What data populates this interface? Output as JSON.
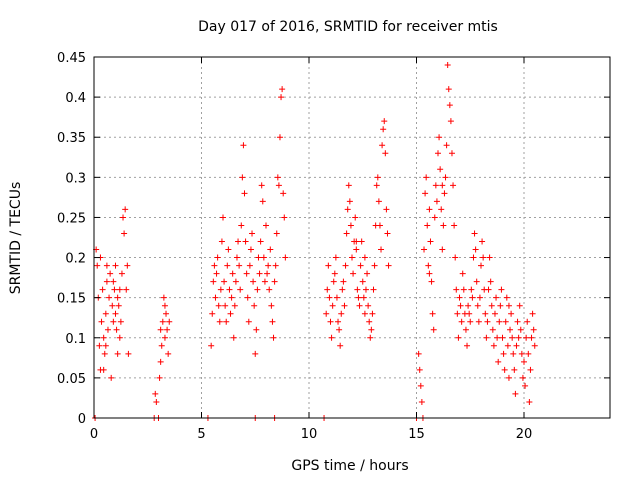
{
  "chart_data": {
    "type": "scatter",
    "title": "Day 017 of 2016, SRMTID for receiver mtis",
    "xlabel": "GPS time / hours",
    "ylabel": "SRMTID / TECUs",
    "xlim": [
      0,
      24
    ],
    "ylim": [
      0,
      0.45
    ],
    "grid": true,
    "marker": "+",
    "color": "#ff0000",
    "x_ticks": [
      {
        "value": 0,
        "label": "0"
      },
      {
        "value": 5,
        "label": "5"
      },
      {
        "value": 10,
        "label": "10"
      },
      {
        "value": 15,
        "label": "15"
      },
      {
        "value": 20,
        "label": "20"
      }
    ],
    "y_ticks": [
      {
        "value": 0,
        "label": "0"
      },
      {
        "value": 0.05,
        "label": "0.05"
      },
      {
        "value": 0.1,
        "label": "0.1"
      },
      {
        "value": 0.15,
        "label": "0.15"
      },
      {
        "value": 0.2,
        "label": "0.2"
      },
      {
        "value": 0.25,
        "label": "0.25"
      },
      {
        "value": 0.3,
        "label": "0.3"
      },
      {
        "value": 0.35,
        "label": "0.35"
      },
      {
        "value": 0.4,
        "label": "0.4"
      },
      {
        "value": 0.45,
        "label": "0.45"
      }
    ],
    "series": [
      {
        "name": "SRMTID",
        "points": [
          [
            0.05,
            0.0
          ],
          [
            0.1,
            0.21
          ],
          [
            0.15,
            0.19
          ],
          [
            0.2,
            0.15
          ],
          [
            0.25,
            0.09
          ],
          [
            0.3,
            0.06
          ],
          [
            0.35,
            0.12
          ],
          [
            0.4,
            0.16
          ],
          [
            0.45,
            0.1
          ],
          [
            0.5,
            0.08
          ],
          [
            0.55,
            0.13
          ],
          [
            0.6,
            0.17
          ],
          [
            0.65,
            0.11
          ],
          [
            0.7,
            0.15
          ],
          [
            0.75,
            0.18
          ],
          [
            0.8,
            0.05
          ],
          [
            0.85,
            0.14
          ],
          [
            0.9,
            0.12
          ],
          [
            0.95,
            0.16
          ],
          [
            1.0,
            0.13
          ],
          [
            1.05,
            0.11
          ],
          [
            1.1,
            0.15
          ],
          [
            1.15,
            0.14
          ],
          [
            1.2,
            0.1
          ],
          [
            1.25,
            0.12
          ],
          [
            1.3,
            0.18
          ],
          [
            1.35,
            0.25
          ],
          [
            1.4,
            0.23
          ],
          [
            1.45,
            0.26
          ],
          [
            1.5,
            0.16
          ],
          [
            1.55,
            0.19
          ],
          [
            1.6,
            0.08
          ],
          [
            0.3,
            0.2
          ],
          [
            0.6,
            0.19
          ],
          [
            0.9,
            0.17
          ],
          [
            1.0,
            0.19
          ],
          [
            1.2,
            0.16
          ],
          [
            0.45,
            0.06
          ],
          [
            0.55,
            0.09
          ],
          [
            1.1,
            0.08
          ],
          [
            2.8,
            0.0
          ],
          [
            2.85,
            0.03
          ],
          [
            2.9,
            0.02
          ],
          [
            3.0,
            0.0
          ],
          [
            3.05,
            0.05
          ],
          [
            3.1,
            0.07
          ],
          [
            3.15,
            0.09
          ],
          [
            3.2,
            0.12
          ],
          [
            3.25,
            0.15
          ],
          [
            3.3,
            0.1
          ],
          [
            3.35,
            0.13
          ],
          [
            3.4,
            0.11
          ],
          [
            3.45,
            0.08
          ],
          [
            3.5,
            0.12
          ],
          [
            3.1,
            0.11
          ],
          [
            3.3,
            0.14
          ],
          [
            5.3,
            0.0
          ],
          [
            5.45,
            0.09
          ],
          [
            5.5,
            0.13
          ],
          [
            5.55,
            0.17
          ],
          [
            5.6,
            0.19
          ],
          [
            5.65,
            0.15
          ],
          [
            5.7,
            0.18
          ],
          [
            5.75,
            0.2
          ],
          [
            5.8,
            0.14
          ],
          [
            5.85,
            0.12
          ],
          [
            5.9,
            0.16
          ],
          [
            5.95,
            0.22
          ],
          [
            6.0,
            0.25
          ],
          [
            6.05,
            0.17
          ],
          [
            6.1,
            0.14
          ],
          [
            6.15,
            0.12
          ],
          [
            6.2,
            0.19
          ],
          [
            6.25,
            0.21
          ],
          [
            6.3,
            0.16
          ],
          [
            6.35,
            0.13
          ],
          [
            6.4,
            0.15
          ],
          [
            6.45,
            0.18
          ],
          [
            6.5,
            0.1
          ],
          [
            6.55,
            0.14
          ],
          [
            6.6,
            0.17
          ],
          [
            6.65,
            0.2
          ],
          [
            6.7,
            0.22
          ],
          [
            6.75,
            0.19
          ],
          [
            6.8,
            0.16
          ],
          [
            6.85,
            0.24
          ],
          [
            6.9,
            0.3
          ],
          [
            6.95,
            0.34
          ],
          [
            7.0,
            0.28
          ],
          [
            7.05,
            0.22
          ],
          [
            7.1,
            0.18
          ],
          [
            7.15,
            0.15
          ],
          [
            7.2,
            0.12
          ],
          [
            7.25,
            0.19
          ],
          [
            7.3,
            0.21
          ],
          [
            7.35,
            0.23
          ],
          [
            7.4,
            0.17
          ],
          [
            7.45,
            0.14
          ],
          [
            7.5,
            0.08
          ],
          [
            7.55,
            0.11
          ],
          [
            7.6,
            0.16
          ],
          [
            7.65,
            0.2
          ],
          [
            7.7,
            0.18
          ],
          [
            7.75,
            0.22
          ],
          [
            7.8,
            0.29
          ],
          [
            7.85,
            0.27
          ],
          [
            7.9,
            0.2
          ],
          [
            7.95,
            0.17
          ],
          [
            8.0,
            0.24
          ],
          [
            8.05,
            0.18
          ],
          [
            8.1,
            0.19
          ],
          [
            8.15,
            0.16
          ],
          [
            8.2,
            0.21
          ],
          [
            8.25,
            0.14
          ],
          [
            8.3,
            0.12
          ],
          [
            8.35,
            0.1
          ],
          [
            8.4,
            0.17
          ],
          [
            8.45,
            0.19
          ],
          [
            8.5,
            0.23
          ],
          [
            8.55,
            0.3
          ],
          [
            8.6,
            0.29
          ],
          [
            8.65,
            0.35
          ],
          [
            8.7,
            0.4
          ],
          [
            8.75,
            0.41
          ],
          [
            8.8,
            0.28
          ],
          [
            8.85,
            0.25
          ],
          [
            8.9,
            0.2
          ],
          [
            7.5,
            0.0
          ],
          [
            8.4,
            0.0
          ],
          [
            10.7,
            0.0
          ],
          [
            10.8,
            0.13
          ],
          [
            10.85,
            0.16
          ],
          [
            10.9,
            0.19
          ],
          [
            10.95,
            0.15
          ],
          [
            11.0,
            0.12
          ],
          [
            11.05,
            0.1
          ],
          [
            11.1,
            0.14
          ],
          [
            11.15,
            0.17
          ],
          [
            11.2,
            0.18
          ],
          [
            11.25,
            0.2
          ],
          [
            11.3,
            0.15
          ],
          [
            11.35,
            0.12
          ],
          [
            11.4,
            0.11
          ],
          [
            11.45,
            0.09
          ],
          [
            11.5,
            0.13
          ],
          [
            11.55,
            0.16
          ],
          [
            11.6,
            0.17
          ],
          [
            11.65,
            0.14
          ],
          [
            11.7,
            0.19
          ],
          [
            11.75,
            0.23
          ],
          [
            11.8,
            0.26
          ],
          [
            11.85,
            0.29
          ],
          [
            11.9,
            0.27
          ],
          [
            11.95,
            0.24
          ],
          [
            12.0,
            0.2
          ],
          [
            12.05,
            0.18
          ],
          [
            12.1,
            0.22
          ],
          [
            12.15,
            0.25
          ],
          [
            12.2,
            0.21
          ],
          [
            12.25,
            0.16
          ],
          [
            12.3,
            0.15
          ],
          [
            12.35,
            0.14
          ],
          [
            12.4,
            0.19
          ],
          [
            12.45,
            0.22
          ],
          [
            12.5,
            0.17
          ],
          [
            12.55,
            0.15
          ],
          [
            12.6,
            0.13
          ],
          [
            12.65,
            0.16
          ],
          [
            12.7,
            0.18
          ],
          [
            12.75,
            0.14
          ],
          [
            12.8,
            0.12
          ],
          [
            12.85,
            0.1
          ],
          [
            12.9,
            0.11
          ],
          [
            12.95,
            0.13
          ],
          [
            13.0,
            0.16
          ],
          [
            13.05,
            0.19
          ],
          [
            13.1,
            0.24
          ],
          [
            13.15,
            0.29
          ],
          [
            13.2,
            0.3
          ],
          [
            13.25,
            0.27
          ],
          [
            13.3,
            0.24
          ],
          [
            13.35,
            0.21
          ],
          [
            13.4,
            0.34
          ],
          [
            13.45,
            0.36
          ],
          [
            13.5,
            0.37
          ],
          [
            13.55,
            0.33
          ],
          [
            13.6,
            0.26
          ],
          [
            13.65,
            0.23
          ],
          [
            13.7,
            0.19
          ],
          [
            12.2,
            0.22
          ],
          [
            12.6,
            0.2
          ],
          [
            15.0,
            0.0
          ],
          [
            15.1,
            0.08
          ],
          [
            15.15,
            0.06
          ],
          [
            15.2,
            0.04
          ],
          [
            15.25,
            0.02
          ],
          [
            15.3,
            0.0
          ],
          [
            15.35,
            0.21
          ],
          [
            15.4,
            0.28
          ],
          [
            15.45,
            0.3
          ],
          [
            15.5,
            0.24
          ],
          [
            15.55,
            0.19
          ],
          [
            15.6,
            0.26
          ],
          [
            15.65,
            0.22
          ],
          [
            15.7,
            0.17
          ],
          [
            15.75,
            0.13
          ],
          [
            15.8,
            0.11
          ],
          [
            15.85,
            0.25
          ],
          [
            15.9,
            0.29
          ],
          [
            15.95,
            0.27
          ],
          [
            16.0,
            0.33
          ],
          [
            16.05,
            0.35
          ],
          [
            16.1,
            0.31
          ],
          [
            16.15,
            0.26
          ],
          [
            16.2,
            0.21
          ],
          [
            16.25,
            0.24
          ],
          [
            16.3,
            0.28
          ],
          [
            16.35,
            0.3
          ],
          [
            16.4,
            0.34
          ],
          [
            16.45,
            0.44
          ],
          [
            16.5,
            0.41
          ],
          [
            16.55,
            0.39
          ],
          [
            16.6,
            0.37
          ],
          [
            16.65,
            0.33
          ],
          [
            16.7,
            0.29
          ],
          [
            16.75,
            0.24
          ],
          [
            16.8,
            0.2
          ],
          [
            16.85,
            0.16
          ],
          [
            16.9,
            0.13
          ],
          [
            16.95,
            0.1
          ],
          [
            17.0,
            0.15
          ],
          [
            17.05,
            0.14
          ],
          [
            17.1,
            0.12
          ],
          [
            17.15,
            0.18
          ],
          [
            17.2,
            0.16
          ],
          [
            17.25,
            0.13
          ],
          [
            17.3,
            0.11
          ],
          [
            17.35,
            0.09
          ],
          [
            17.4,
            0.14
          ],
          [
            17.45,
            0.13
          ],
          [
            17.5,
            0.12
          ],
          [
            17.55,
            0.16
          ],
          [
            17.6,
            0.15
          ],
          [
            17.65,
            0.2
          ],
          [
            17.7,
            0.23
          ],
          [
            17.75,
            0.21
          ],
          [
            17.8,
            0.17
          ],
          [
            17.85,
            0.14
          ],
          [
            17.9,
            0.12
          ],
          [
            17.95,
            0.15
          ],
          [
            18.0,
            0.19
          ],
          [
            18.05,
            0.22
          ],
          [
            18.1,
            0.2
          ],
          [
            18.15,
            0.16
          ],
          [
            18.2,
            0.13
          ],
          [
            18.25,
            0.1
          ],
          [
            18.3,
            0.12
          ],
          [
            18.35,
            0.16
          ],
          [
            18.4,
            0.2
          ],
          [
            18.45,
            0.17
          ],
          [
            18.5,
            0.14
          ],
          [
            18.55,
            0.11
          ],
          [
            18.6,
            0.09
          ],
          [
            18.65,
            0.13
          ],
          [
            18.7,
            0.15
          ],
          [
            18.75,
            0.1
          ],
          [
            18.8,
            0.07
          ],
          [
            18.85,
            0.12
          ],
          [
            18.9,
            0.14
          ],
          [
            18.95,
            0.16
          ],
          [
            19.0,
            0.1
          ],
          [
            19.05,
            0.08
          ],
          [
            19.1,
            0.06
          ],
          [
            19.15,
            0.12
          ],
          [
            19.2,
            0.15
          ],
          [
            19.25,
            0.09
          ],
          [
            19.3,
            0.05
          ],
          [
            19.35,
            0.11
          ],
          [
            19.4,
            0.13
          ],
          [
            19.45,
            0.1
          ],
          [
            19.5,
            0.08
          ],
          [
            19.55,
            0.06
          ],
          [
            19.6,
            0.03
          ],
          [
            19.65,
            0.09
          ],
          [
            19.7,
            0.12
          ],
          [
            19.75,
            0.1
          ],
          [
            19.8,
            0.14
          ],
          [
            19.85,
            0.11
          ],
          [
            19.9,
            0.08
          ],
          [
            19.95,
            0.05
          ],
          [
            20.0,
            0.07
          ],
          [
            20.05,
            0.04
          ],
          [
            20.1,
            0.1
          ],
          [
            20.15,
            0.12
          ],
          [
            20.2,
            0.08
          ],
          [
            20.25,
            0.02
          ],
          [
            20.3,
            0.06
          ],
          [
            20.35,
            0.1
          ],
          [
            20.4,
            0.13
          ],
          [
            20.45,
            0.11
          ],
          [
            20.5,
            0.09
          ],
          [
            15.6,
            0.18
          ],
          [
            16.2,
            0.29
          ],
          [
            19.3,
            0.14
          ]
        ]
      }
    ]
  }
}
